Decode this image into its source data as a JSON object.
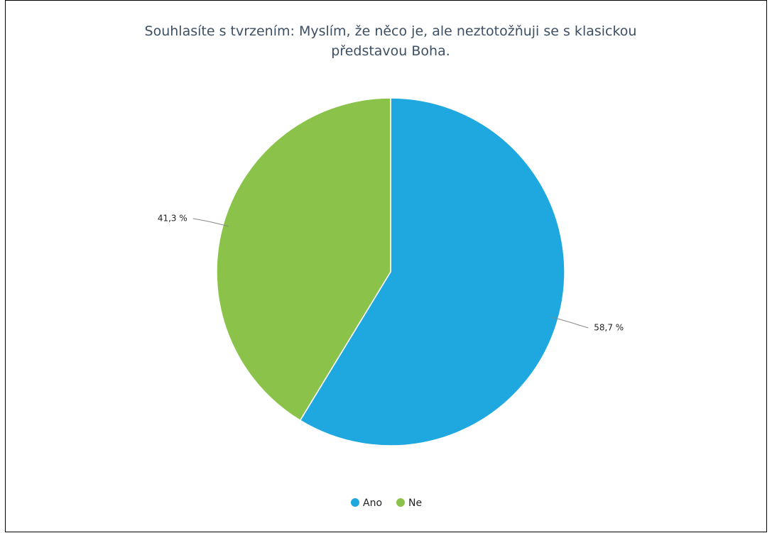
{
  "chart_data": {
    "type": "pie",
    "title": "Souhlasíte s tvrzením: Myslím, že něco je, ale neztotožňuji se s klasickou představou Boha.",
    "categories": [
      "Ano",
      "Ne"
    ],
    "values": [
      58.7,
      41.3
    ],
    "value_labels": [
      "58,7 %",
      "41,3 %"
    ],
    "colors": [
      "#1fa8e0",
      "#8bc34a"
    ],
    "legend": "bottom"
  }
}
